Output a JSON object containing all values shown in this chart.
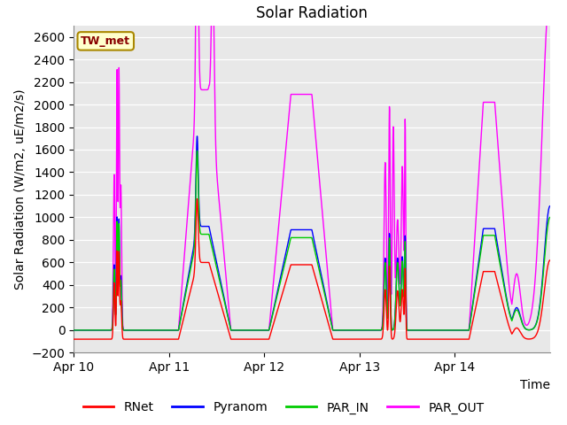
{
  "title": "Solar Radiation",
  "ylabel": "Solar Radiation (W/m2, uE/m2/s)",
  "xlabel": "Time",
  "ylim": [
    -200,
    2700
  ],
  "yticks": [
    -200,
    0,
    200,
    400,
    600,
    800,
    1000,
    1200,
    1400,
    1600,
    1800,
    2000,
    2200,
    2400,
    2600
  ],
  "xtick_labels": [
    "Apr 10",
    "Apr 11",
    "Apr 12",
    "Apr 13",
    "Apr 14"
  ],
  "xtick_positions": [
    0,
    1,
    2,
    3,
    4
  ],
  "legend_labels": [
    "RNet",
    "Pyranom",
    "PAR_IN",
    "PAR_OUT"
  ],
  "legend_colors": [
    "#ff0000",
    "#0000ff",
    "#00cc00",
    "#ff00ff"
  ],
  "inset_label": "TW_met",
  "inset_bg": "#ffffcc",
  "inset_border": "#aa8800",
  "inset_text_color": "#880000",
  "background_color": "#e8e8e8",
  "title_fontsize": 12,
  "axis_fontsize": 10,
  "tick_fontsize": 10,
  "legend_fontsize": 10,
  "n_points": 2000,
  "xlim": [
    0,
    5
  ]
}
